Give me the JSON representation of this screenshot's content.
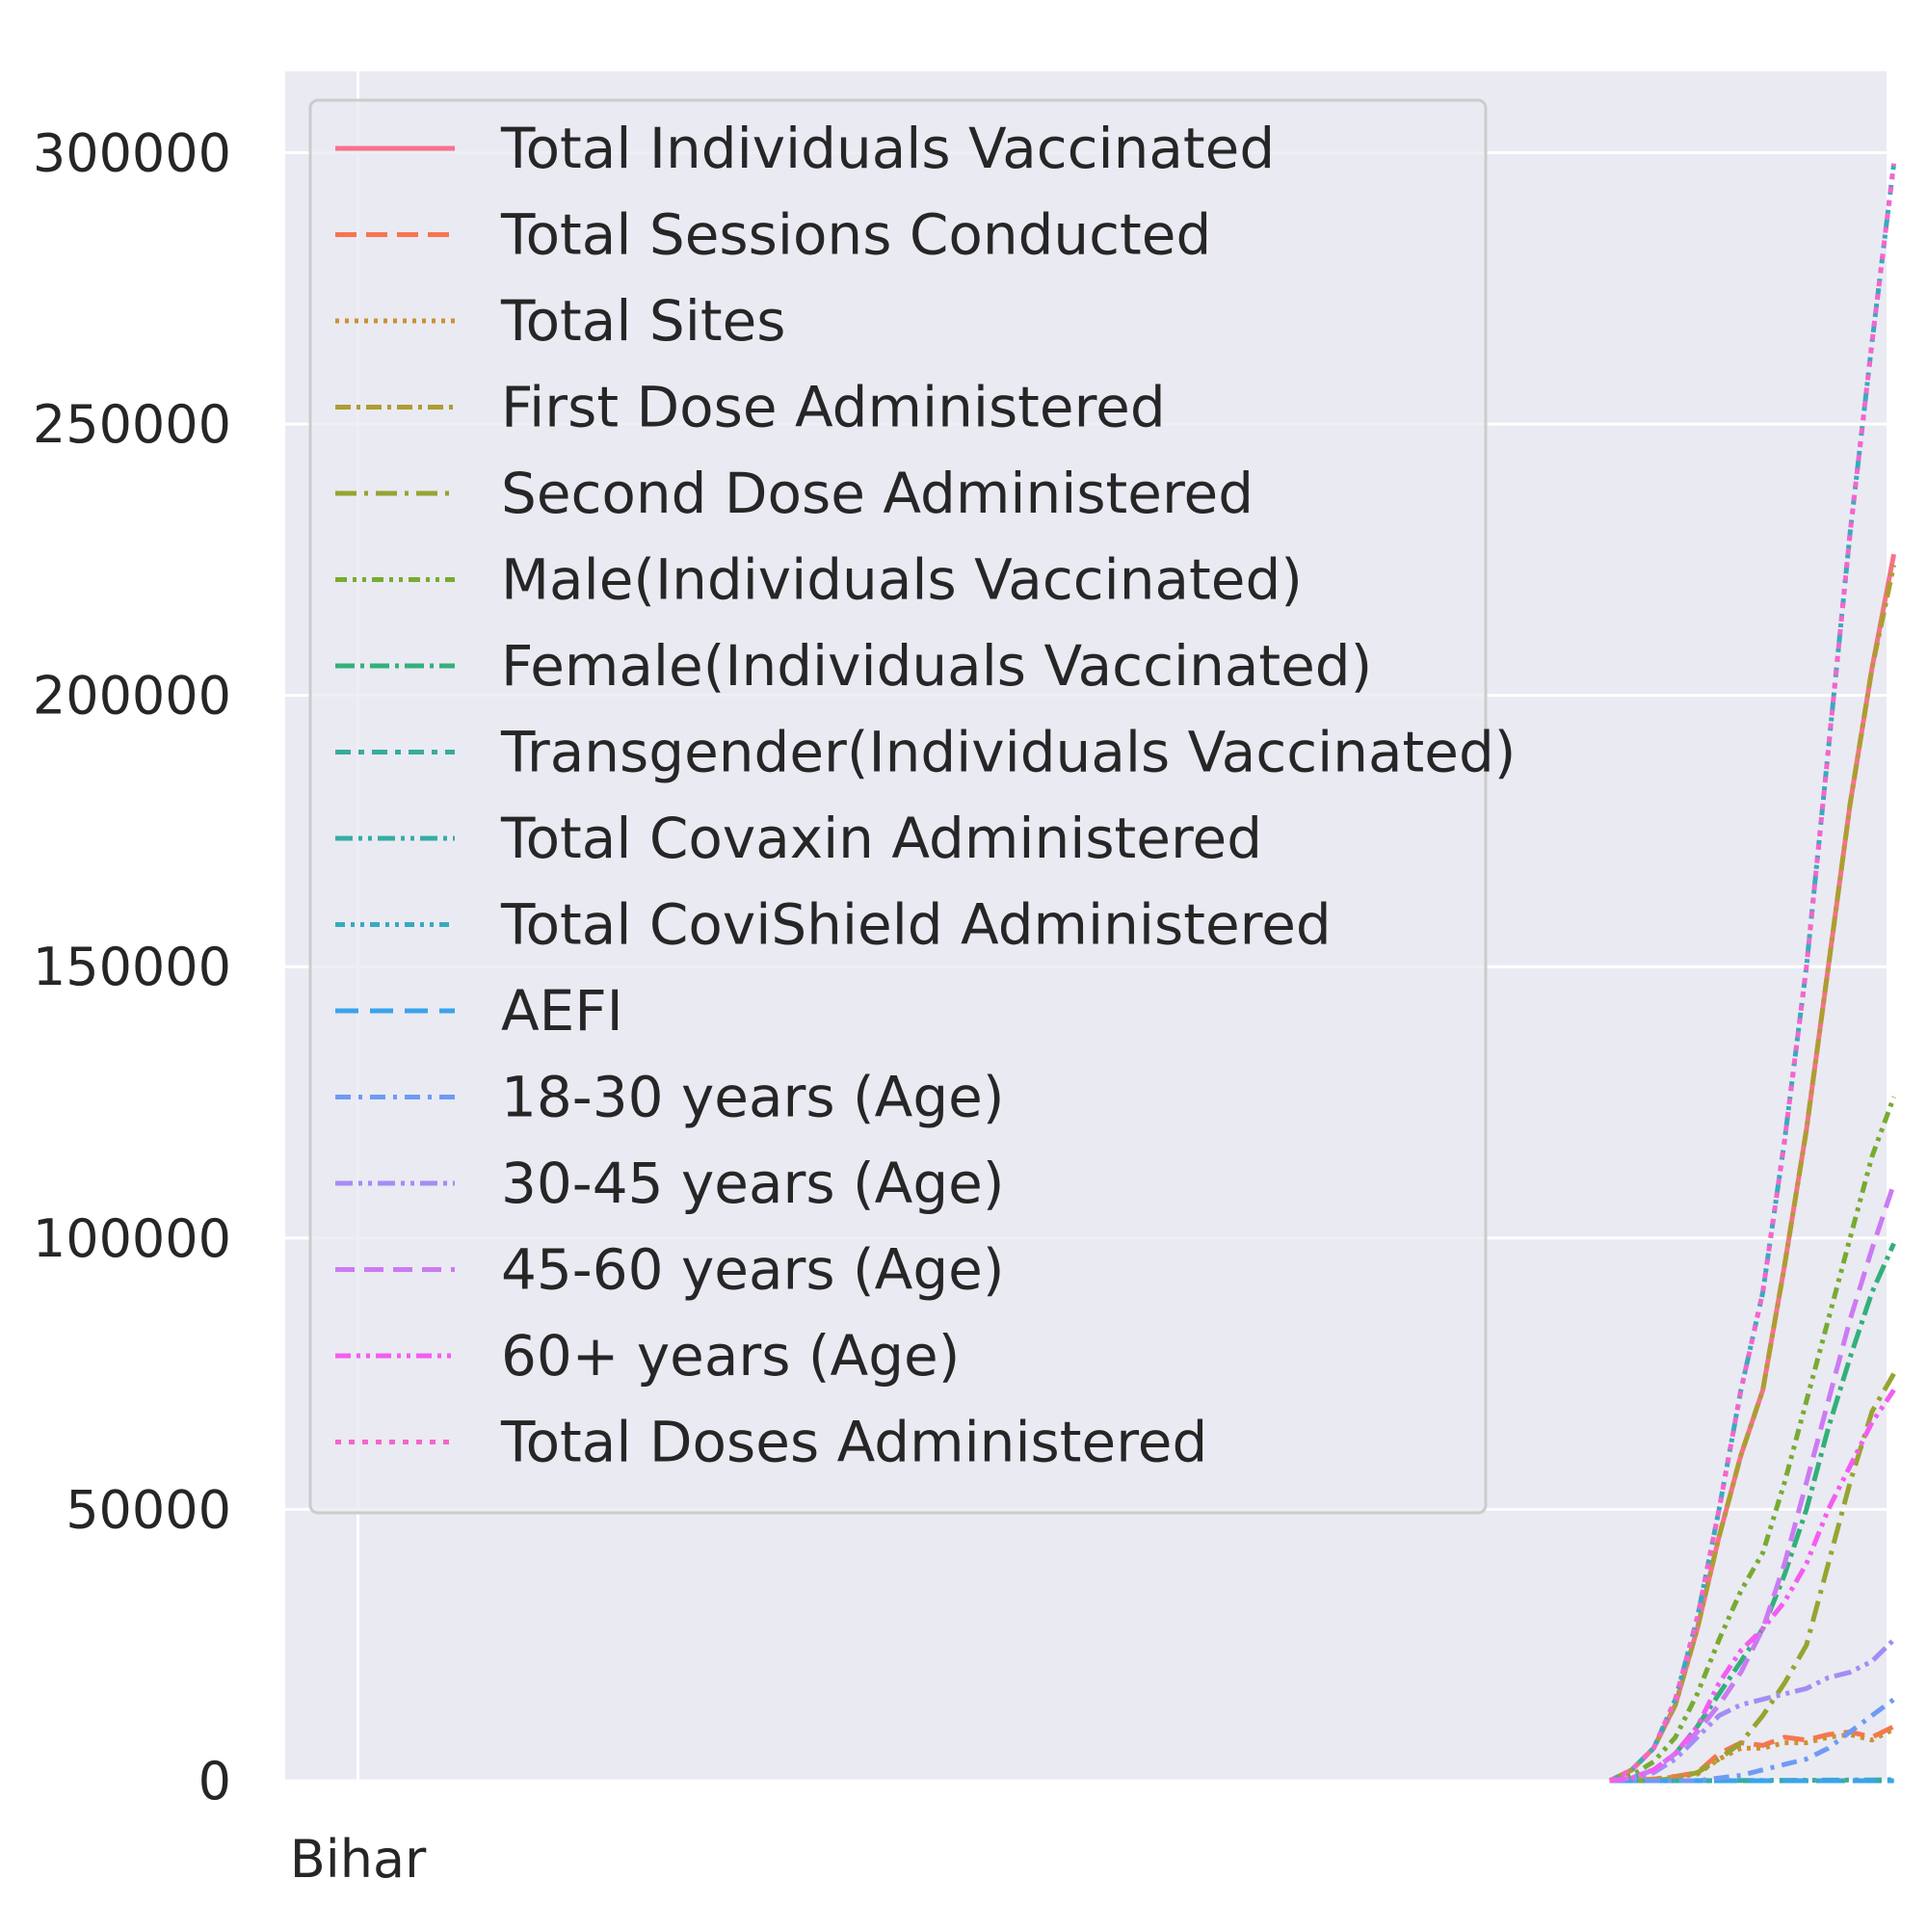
{
  "chart_data": {
    "type": "line",
    "title": "",
    "xlabel": "",
    "ylabel": "",
    "x_tick_labels": [
      "Bihar"
    ],
    "y_tick_labels": [
      "0",
      "50000",
      "100000",
      "150000",
      "200000",
      "250000",
      "300000"
    ],
    "y_ticks": [
      0,
      50000,
      100000,
      150000,
      200000,
      250000,
      300000
    ],
    "ylim": [
      0,
      315000
    ],
    "x_range": [
      -20,
      420
    ],
    "grid": true,
    "legend_location": "upper-left",
    "note_x": "x is the row index in the dataset (0..400); only the first row label 'Bihar' is printed on the x-axis",
    "x": [
      344,
      350,
      356,
      362,
      368,
      374,
      380,
      386,
      392,
      398,
      404,
      410,
      416,
      422
    ],
    "series": [
      {
        "name": "Total Individuals Vaccinated",
        "color": "#f77189",
        "dash": "",
        "values": [
          0,
          2000,
          6000,
          14000,
          28000,
          45000,
          60000,
          72000,
          95000,
          120000,
          150000,
          180000,
          205000,
          226000
        ]
      },
      {
        "name": "Total Sessions Conducted",
        "color": "#f7754f",
        "dash": "22 10",
        "values": [
          0,
          100,
          300,
          800,
          1500,
          5000,
          7000,
          6500,
          8000,
          7500,
          8500,
          9000,
          8000,
          10000
        ]
      },
      {
        "name": "Total Sites",
        "color": "#ce9032",
        "dash": "4 6",
        "values": [
          0,
          100,
          300,
          700,
          1200,
          4000,
          6000,
          6000,
          7000,
          7000,
          8000,
          8500,
          7500,
          9500
        ]
      },
      {
        "name": "First Dose Administered",
        "color": "#ae9d31",
        "dash": "16 6 4 6",
        "values": [
          0,
          2000,
          6000,
          14000,
          28000,
          45000,
          60000,
          72000,
          95000,
          120000,
          150000,
          180000,
          205000,
          224000
        ]
      },
      {
        "name": "Second Dose Administered",
        "color": "#97a431",
        "dash": "22 8 4 8",
        "values": [
          0,
          0,
          0,
          500,
          1500,
          4000,
          7000,
          12000,
          18000,
          25000,
          40000,
          55000,
          68000,
          75000
        ]
      },
      {
        "name": "Male(Individuals Vaccinated)",
        "color": "#77ab31",
        "dash": "12 6 4 6 4 6",
        "values": [
          0,
          1000,
          3500,
          8000,
          16000,
          26000,
          35000,
          42000,
          55000,
          70000,
          85000,
          100000,
          115000,
          126000
        ]
      },
      {
        "name": "Female(Individuals Vaccinated)",
        "color": "#33b07a",
        "dash": "20 6 4 6",
        "values": [
          0,
          500,
          2000,
          5000,
          10000,
          16000,
          22000,
          28000,
          38000,
          50000,
          65000,
          78000,
          90000,
          99000
        ]
      },
      {
        "name": "Transgender(Individuals Vaccinated)",
        "color": "#35ad9c",
        "dash": "16 8 6 8",
        "values": [
          0,
          0,
          0,
          0,
          0,
          0,
          1,
          1,
          2,
          2,
          3,
          3,
          4,
          4
        ]
      },
      {
        "name": "Total Covaxin Administered",
        "color": "#36ada4",
        "dash": "18 6 4 6 4 6",
        "values": [
          0,
          0,
          0,
          0,
          10,
          20,
          30,
          50,
          70,
          90,
          110,
          130,
          150,
          170
        ]
      },
      {
        "name": "Total CoviShield Administered",
        "color": "#38aabf",
        "dash": "10 6 4 6 4 6",
        "values": [
          0,
          2000,
          6000,
          15000,
          30000,
          50000,
          72000,
          90000,
          118000,
          150000,
          190000,
          230000,
          265000,
          298000
        ]
      },
      {
        "name": "AEFI",
        "color": "#3ba3ec",
        "dash": "24 12",
        "values": [
          0,
          0,
          0,
          0,
          0,
          0,
          0,
          0,
          1,
          1,
          1,
          2,
          2,
          2
        ]
      },
      {
        "name": "18-30 years (Age)",
        "color": "#6e9bf4",
        "dash": "16 8 4 8",
        "values": [
          0,
          0,
          0,
          0,
          0,
          500,
          1000,
          2000,
          3000,
          4000,
          6000,
          9000,
          12000,
          15000
        ]
      },
      {
        "name": "30-45 years (Age)",
        "color": "#a48cf4",
        "dash": "18 6 4 6 4 6",
        "values": [
          0,
          500,
          1500,
          4000,
          8000,
          12000,
          14000,
          15000,
          16000,
          17000,
          19000,
          20000,
          22000,
          26000
        ]
      },
      {
        "name": "45-60 years (Age)",
        "color": "#cc7af4",
        "dash": "20 10",
        "values": [
          0,
          500,
          2000,
          5000,
          9000,
          14000,
          20000,
          28000,
          40000,
          55000,
          70000,
          85000,
          98000,
          110000
        ]
      },
      {
        "name": "60+ years (Age)",
        "color": "#f45cf2",
        "dash": "16 6 4 6 4 6",
        "values": [
          0,
          500,
          2000,
          5000,
          10000,
          18000,
          24000,
          28000,
          33000,
          40000,
          50000,
          58000,
          66000,
          72000
        ]
      },
      {
        "name": "Total Doses Administered",
        "color": "#f565cc",
        "dash": "6 8",
        "values": [
          0,
          2000,
          6000,
          15000,
          30000,
          50000,
          72000,
          90000,
          118000,
          150000,
          190000,
          230000,
          265000,
          298000
        ]
      }
    ]
  }
}
